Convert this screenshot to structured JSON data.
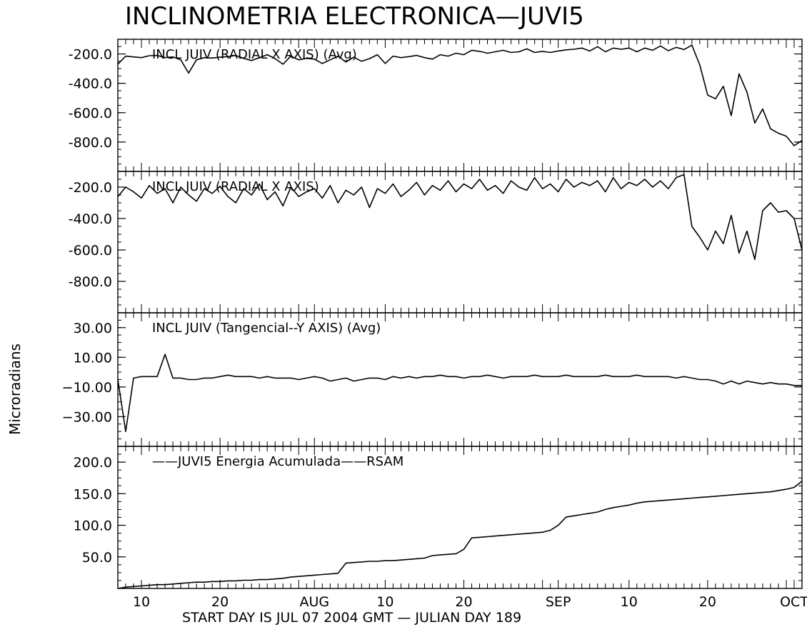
{
  "title": "INCLINOMETRIA ELECTRONICA—JUVI5",
  "ylabel": "Microradians",
  "footer": "START DAY IS JUL 07 2004 GMT    — JULIAN DAY 189",
  "x_axis": {
    "start": "2004-07-07",
    "end": "2004-10-02",
    "tick_labels": [
      {
        "date": "2004-07-10",
        "label": "10"
      },
      {
        "date": "2004-07-20",
        "label": "20"
      },
      {
        "date": "2004-08-01",
        "label": "AUG"
      },
      {
        "date": "2004-08-10",
        "label": "10"
      },
      {
        "date": "2004-08-20",
        "label": "20"
      },
      {
        "date": "2004-09-01",
        "label": "SEP"
      },
      {
        "date": "2004-09-10",
        "label": "10"
      },
      {
        "date": "2004-09-20",
        "label": "20"
      },
      {
        "date": "2004-10-01",
        "label": "OCT"
      }
    ]
  },
  "chart_data": [
    {
      "type": "line",
      "title": "INCL  JUIV (RADIAL X AXIS) (Avg)",
      "ylim": [
        -1000,
        -100
      ],
      "y_ticks": [
        {
          "value": -200,
          "label": "-200.0"
        },
        {
          "value": -400,
          "label": "-400.0"
        },
        {
          "value": -600,
          "label": "-600.0"
        },
        {
          "value": -800,
          "label": "-800.0"
        }
      ],
      "x": [
        "2004-07-07",
        "2004-07-08",
        "2004-07-09",
        "2004-07-10",
        "2004-07-11",
        "2004-07-12",
        "2004-07-13",
        "2004-07-14",
        "2004-07-15",
        "2004-07-16",
        "2004-07-17",
        "2004-07-18",
        "2004-07-19",
        "2004-07-20",
        "2004-07-21",
        "2004-07-22",
        "2004-07-23",
        "2004-07-24",
        "2004-07-25",
        "2004-07-26",
        "2004-07-27",
        "2004-07-28",
        "2004-07-29",
        "2004-07-30",
        "2004-07-31",
        "2004-08-01",
        "2004-08-02",
        "2004-08-03",
        "2004-08-04",
        "2004-08-05",
        "2004-08-06",
        "2004-08-07",
        "2004-08-08",
        "2004-08-09",
        "2004-08-10",
        "2004-08-11",
        "2004-08-12",
        "2004-08-13",
        "2004-08-14",
        "2004-08-15",
        "2004-08-16",
        "2004-08-17",
        "2004-08-18",
        "2004-08-19",
        "2004-08-20",
        "2004-08-21",
        "2004-08-22",
        "2004-08-23",
        "2004-08-24",
        "2004-08-25",
        "2004-08-26",
        "2004-08-27",
        "2004-08-28",
        "2004-08-29",
        "2004-08-30",
        "2004-08-31",
        "2004-09-01",
        "2004-09-02",
        "2004-09-03",
        "2004-09-04",
        "2004-09-05",
        "2004-09-06",
        "2004-09-07",
        "2004-09-08",
        "2004-09-09",
        "2004-09-10",
        "2004-09-11",
        "2004-09-12",
        "2004-09-13",
        "2004-09-14",
        "2004-09-15",
        "2004-09-16",
        "2004-09-17",
        "2004-09-18",
        "2004-09-19",
        "2004-09-20",
        "2004-09-21",
        "2004-09-22",
        "2004-09-23",
        "2004-09-24",
        "2004-09-25",
        "2004-09-26",
        "2004-09-27",
        "2004-09-28",
        "2004-09-29",
        "2004-09-30",
        "2004-10-01",
        "2004-10-02"
      ],
      "values": [
        -270,
        -215,
        -220,
        -225,
        -212,
        -210,
        -225,
        -220,
        -240,
        -330,
        -240,
        -225,
        -228,
        -222,
        -218,
        -210,
        -230,
        -245,
        -225,
        -205,
        -232,
        -270,
        -215,
        -240,
        -230,
        -235,
        -265,
        -240,
        -215,
        -255,
        -222,
        -250,
        -232,
        -205,
        -265,
        -215,
        -225,
        -218,
        -210,
        -225,
        -235,
        -205,
        -215,
        -195,
        -205,
        -175,
        -182,
        -195,
        -185,
        -175,
        -190,
        -185,
        -165,
        -190,
        -182,
        -190,
        -180,
        -172,
        -168,
        -160,
        -180,
        -150,
        -185,
        -160,
        -168,
        -160,
        -185,
        -160,
        -175,
        -145,
        -178,
        -155,
        -170,
        -140,
        -275,
        -480,
        -505,
        -420,
        -620,
        -335,
        -460,
        -670,
        -575,
        -710,
        -740,
        -760,
        -825,
        -790
      ],
      "color": "#000000"
    },
    {
      "type": "line",
      "title": "INCL JUIV (RADIAL  X AXIS)",
      "ylim": [
        -1000,
        -100
      ],
      "y_ticks": [
        {
          "value": -200,
          "label": "-200.0"
        },
        {
          "value": -400,
          "label": "-400.0"
        },
        {
          "value": -600,
          "label": "-600.0"
        },
        {
          "value": -800,
          "label": "-800.0"
        }
      ],
      "x": [
        "2004-07-07",
        "2004-07-08",
        "2004-07-09",
        "2004-07-10",
        "2004-07-11",
        "2004-07-12",
        "2004-07-13",
        "2004-07-14",
        "2004-07-15",
        "2004-07-16",
        "2004-07-17",
        "2004-07-18",
        "2004-07-19",
        "2004-07-20",
        "2004-07-21",
        "2004-07-22",
        "2004-07-23",
        "2004-07-24",
        "2004-07-25",
        "2004-07-26",
        "2004-07-27",
        "2004-07-28",
        "2004-07-29",
        "2004-07-30",
        "2004-07-31",
        "2004-08-01",
        "2004-08-02",
        "2004-08-03",
        "2004-08-04",
        "2004-08-05",
        "2004-08-06",
        "2004-08-07",
        "2004-08-08",
        "2004-08-09",
        "2004-08-10",
        "2004-08-11",
        "2004-08-12",
        "2004-08-13",
        "2004-08-14",
        "2004-08-15",
        "2004-08-16",
        "2004-08-17",
        "2004-08-18",
        "2004-08-19",
        "2004-08-20",
        "2004-08-21",
        "2004-08-22",
        "2004-08-23",
        "2004-08-24",
        "2004-08-25",
        "2004-08-26",
        "2004-08-27",
        "2004-08-28",
        "2004-08-29",
        "2004-08-30",
        "2004-08-31",
        "2004-09-01",
        "2004-09-02",
        "2004-09-03",
        "2004-09-04",
        "2004-09-05",
        "2004-09-06",
        "2004-09-07",
        "2004-09-08",
        "2004-09-09",
        "2004-09-10",
        "2004-09-11",
        "2004-09-12",
        "2004-09-13",
        "2004-09-14",
        "2004-09-15",
        "2004-09-16",
        "2004-09-17",
        "2004-09-18",
        "2004-09-19",
        "2004-09-20",
        "2004-09-21",
        "2004-09-22",
        "2004-09-23",
        "2004-09-24",
        "2004-09-25",
        "2004-09-26",
        "2004-09-27",
        "2004-09-28",
        "2004-09-29",
        "2004-09-30",
        "2004-10-01",
        "2004-10-02"
      ],
      "values": [
        -260,
        -200,
        -230,
        -270,
        -190,
        -240,
        -210,
        -300,
        -200,
        -250,
        -290,
        -210,
        -240,
        -195,
        -260,
        -300,
        -210,
        -250,
        -180,
        -280,
        -230,
        -320,
        -200,
        -260,
        -230,
        -210,
        -270,
        -190,
        -300,
        -220,
        -250,
        -200,
        -330,
        -210,
        -240,
        -180,
        -260,
        -220,
        -170,
        -250,
        -190,
        -220,
        -160,
        -230,
        -180,
        -210,
        -150,
        -220,
        -190,
        -240,
        -160,
        -200,
        -220,
        -140,
        -210,
        -180,
        -230,
        -150,
        -200,
        -170,
        -190,
        -160,
        -230,
        -140,
        -210,
        -170,
        -190,
        -150,
        -200,
        -160,
        -210,
        -140,
        -120,
        -450,
        -520,
        -600,
        -480,
        -560,
        -380,
        -620,
        -480,
        -660,
        -350,
        -300,
        -360,
        -350,
        -400,
        -600
      ],
      "color": "#000000"
    },
    {
      "type": "line",
      "title": "INCL JUIV (Tangencial--Y AXIS) (Avg)",
      "ylim": [
        -50,
        40
      ],
      "y_ticks": [
        {
          "value": 30,
          "label": "30.00"
        },
        {
          "value": 10,
          "label": "10.00"
        },
        {
          "value": -10,
          "label": "−10.00"
        },
        {
          "value": -30,
          "label": "−30.00"
        }
      ],
      "x": [
        "2004-07-07",
        "2004-07-08",
        "2004-07-09",
        "2004-07-10",
        "2004-07-11",
        "2004-07-12",
        "2004-07-13",
        "2004-07-14",
        "2004-07-15",
        "2004-07-16",
        "2004-07-17",
        "2004-07-18",
        "2004-07-19",
        "2004-07-20",
        "2004-07-21",
        "2004-07-22",
        "2004-07-23",
        "2004-07-24",
        "2004-07-25",
        "2004-07-26",
        "2004-07-27",
        "2004-07-28",
        "2004-07-29",
        "2004-07-30",
        "2004-07-31",
        "2004-08-01",
        "2004-08-02",
        "2004-08-03",
        "2004-08-04",
        "2004-08-05",
        "2004-08-06",
        "2004-08-07",
        "2004-08-08",
        "2004-08-09",
        "2004-08-10",
        "2004-08-11",
        "2004-08-12",
        "2004-08-13",
        "2004-08-14",
        "2004-08-15",
        "2004-08-16",
        "2004-08-17",
        "2004-08-18",
        "2004-08-19",
        "2004-08-20",
        "2004-08-21",
        "2004-08-22",
        "2004-08-23",
        "2004-08-24",
        "2004-08-25",
        "2004-08-26",
        "2004-08-27",
        "2004-08-28",
        "2004-08-29",
        "2004-08-30",
        "2004-08-31",
        "2004-09-01",
        "2004-09-02",
        "2004-09-03",
        "2004-09-04",
        "2004-09-05",
        "2004-09-06",
        "2004-09-07",
        "2004-09-08",
        "2004-09-09",
        "2004-09-10",
        "2004-09-11",
        "2004-09-12",
        "2004-09-13",
        "2004-09-14",
        "2004-09-15",
        "2004-09-16",
        "2004-09-17",
        "2004-09-18",
        "2004-09-19",
        "2004-09-20",
        "2004-09-21",
        "2004-09-22",
        "2004-09-23",
        "2004-09-24",
        "2004-09-25",
        "2004-09-26",
        "2004-09-27",
        "2004-09-28",
        "2004-09-29",
        "2004-09-30",
        "2004-10-01",
        "2004-10-02"
      ],
      "values": [
        -5,
        -40,
        -4,
        -3,
        -3,
        -3,
        12,
        -4,
        -4,
        -5,
        -5,
        -4,
        -4,
        -3,
        -2,
        -3,
        -3,
        -3,
        -4,
        -3,
        -4,
        -4,
        -4,
        -5,
        -4,
        -3,
        -4,
        -6,
        -5,
        -4,
        -6,
        -5,
        -4,
        -4,
        -5,
        -3,
        -4,
        -3,
        -4,
        -3,
        -3,
        -2,
        -3,
        -3,
        -4,
        -3,
        -3,
        -2,
        -3,
        -4,
        -3,
        -3,
        -3,
        -2,
        -3,
        -3,
        -3,
        -2,
        -3,
        -3,
        -3,
        -3,
        -2,
        -3,
        -3,
        -3,
        -2,
        -3,
        -3,
        -3,
        -3,
        -4,
        -3,
        -4,
        -5,
        -5,
        -6,
        -8,
        -6,
        -8,
        -6,
        -7,
        -8,
        -7,
        -8,
        -8,
        -9,
        -9
      ],
      "color": "#000000"
    },
    {
      "type": "line",
      "title": "——JUVI5 Energia Acumulada——RSAM",
      "ylim": [
        0,
        225
      ],
      "y_ticks": [
        {
          "value": 200,
          "label": "200.0"
        },
        {
          "value": 150,
          "label": "150.0"
        },
        {
          "value": 100,
          "label": "100.0"
        },
        {
          "value": 50,
          "label": "50.0"
        }
      ],
      "x": [
        "2004-07-07",
        "2004-07-08",
        "2004-07-09",
        "2004-07-10",
        "2004-07-11",
        "2004-07-12",
        "2004-07-13",
        "2004-07-14",
        "2004-07-15",
        "2004-07-16",
        "2004-07-17",
        "2004-07-18",
        "2004-07-19",
        "2004-07-20",
        "2004-07-21",
        "2004-07-22",
        "2004-07-23",
        "2004-07-24",
        "2004-07-25",
        "2004-07-26",
        "2004-07-27",
        "2004-07-28",
        "2004-07-29",
        "2004-07-30",
        "2004-07-31",
        "2004-08-01",
        "2004-08-02",
        "2004-08-03",
        "2004-08-04",
        "2004-08-05",
        "2004-08-06",
        "2004-08-07",
        "2004-08-08",
        "2004-08-09",
        "2004-08-10",
        "2004-08-11",
        "2004-08-12",
        "2004-08-13",
        "2004-08-14",
        "2004-08-15",
        "2004-08-16",
        "2004-08-17",
        "2004-08-18",
        "2004-08-19",
        "2004-08-20",
        "2004-08-21",
        "2004-08-22",
        "2004-08-23",
        "2004-08-24",
        "2004-08-25",
        "2004-08-26",
        "2004-08-27",
        "2004-08-28",
        "2004-08-29",
        "2004-08-30",
        "2004-08-31",
        "2004-09-01",
        "2004-09-02",
        "2004-09-03",
        "2004-09-04",
        "2004-09-05",
        "2004-09-06",
        "2004-09-07",
        "2004-09-08",
        "2004-09-09",
        "2004-09-10",
        "2004-09-11",
        "2004-09-12",
        "2004-09-13",
        "2004-09-14",
        "2004-09-15",
        "2004-09-16",
        "2004-09-17",
        "2004-09-18",
        "2004-09-19",
        "2004-09-20",
        "2004-09-21",
        "2004-09-22",
        "2004-09-23",
        "2004-09-24",
        "2004-09-25",
        "2004-09-26",
        "2004-09-27",
        "2004-09-28",
        "2004-09-29",
        "2004-09-30",
        "2004-10-01",
        "2004-10-02"
      ],
      "values": [
        0,
        2,
        3,
        4,
        5,
        6,
        6,
        7,
        8,
        9,
        10,
        10,
        11,
        11,
        12,
        12,
        13,
        13,
        14,
        14,
        15,
        16,
        18,
        19,
        20,
        21,
        22,
        23,
        24,
        40,
        41,
        42,
        43,
        43,
        44,
        44,
        45,
        46,
        47,
        48,
        52,
        53,
        54,
        55,
        62,
        80,
        81,
        82,
        83,
        84,
        85,
        86,
        87,
        88,
        89,
        92,
        100,
        113,
        115,
        117,
        119,
        121,
        125,
        128,
        130,
        132,
        135,
        137,
        138,
        139,
        140,
        141,
        142,
        143,
        144,
        145,
        146,
        147,
        148,
        149,
        150,
        151,
        152,
        153,
        155,
        157,
        160,
        170
      ],
      "color": "#000000"
    }
  ]
}
